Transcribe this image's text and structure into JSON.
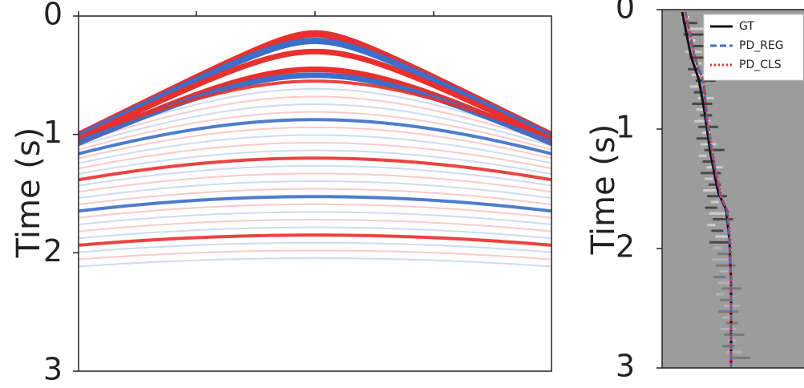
{
  "chart_data": [
    {
      "type": "image",
      "ylabel": "Time (s)",
      "ylim": [
        0,
        3
      ],
      "yticks": [
        0,
        1,
        2,
        3
      ],
      "inverted": true
    },
    {
      "type": "image",
      "ylabel": "Time (s)",
      "ylim": [
        0,
        3
      ],
      "yticks": [
        0,
        1,
        2,
        3
      ],
      "inverted": true,
      "legend": "upper right",
      "series": [
        {
          "name": "GT",
          "color": "#111111",
          "style": "solid"
        },
        {
          "name": "PD_REG",
          "color": "#3b6fc9",
          "style": "dashed"
        },
        {
          "name": "PD_CLS",
          "color": "#e8302c",
          "style": "dotted"
        }
      ]
    }
  ]
}
